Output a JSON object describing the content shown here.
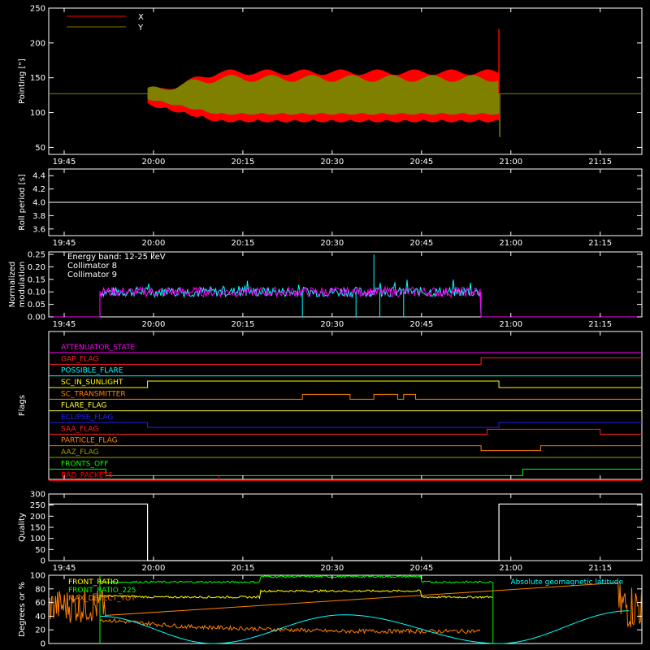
{
  "time_labels": [
    "19:45",
    "20:00",
    "20:15",
    "20:30",
    "20:45",
    "21:00",
    "21:15"
  ],
  "pointing": {
    "ylabel": "Pointing [\"]",
    "yticks": [
      50,
      100,
      150,
      200,
      250
    ],
    "legend": [
      {
        "name": "X",
        "color": "#ff0000"
      },
      {
        "name": "Y",
        "color": "#808000"
      }
    ]
  },
  "roll": {
    "ylabel": "Roll period [s]",
    "yticks": [
      "3.6",
      "3.8",
      "4.0",
      "4.2",
      "4.4"
    ],
    "value": 4.0
  },
  "modulation": {
    "ylabel": "Normalized modulation",
    "yticks": [
      "0.00",
      "0.05",
      "0.10",
      "0.15",
      "0.20",
      "0.25"
    ],
    "legend": [
      {
        "name": "Energy band: 12-25 keV",
        "color": "#ffffff"
      },
      {
        "name": "Collimator 8",
        "color": "#00ffff"
      },
      {
        "name": "Collimator 9",
        "color": "#ff00ff"
      }
    ]
  },
  "flags": {
    "ylabel": "Flags",
    "items": [
      {
        "name": "ATTENUATOR_STATE",
        "color": "#ff00ff"
      },
      {
        "name": "GAP_FLAG",
        "color": "#ff2020"
      },
      {
        "name": "POSSIBLE_FLARE",
        "color": "#00ffff"
      },
      {
        "name": "SC_IN_SUNLIGHT",
        "color": "#ffff00"
      },
      {
        "name": "SC_TRANSMITTER",
        "color": "#ff8000"
      },
      {
        "name": "FLARE_FLAG",
        "color": "#ffff40"
      },
      {
        "name": "ECLIPSE_FLAG",
        "color": "#2020ff"
      },
      {
        "name": "SAA_FLAG",
        "color": "#ff2020"
      },
      {
        "name": "PARTICLE_FLAG",
        "color": "#ff8000"
      },
      {
        "name": "AAZ_FLAG",
        "color": "#a0a000"
      },
      {
        "name": "FRONTS_OFF",
        "color": "#00ff00"
      },
      {
        "name": "BAD_PACKETS",
        "color": "#ff0000"
      }
    ]
  },
  "quality": {
    "ylabel": "Quality",
    "yticks": [
      0,
      50,
      100,
      150,
      200,
      250,
      300
    ]
  },
  "ratio": {
    "ylabel": "Degrees or %",
    "yticks": [
      0,
      20,
      40,
      60,
      80,
      100
    ],
    "legend": [
      {
        "name": "FRONT_RATIO",
        "color": "#ffff00"
      },
      {
        "name": "FRONT_RATIO_225",
        "color": "#00ff00"
      },
      {
        "name": "MAX_DETECT_TOT",
        "color": "#ff8000"
      }
    ],
    "geo_label": "Absolute geomagnetic latitude",
    "geo_color": "#00ffff"
  },
  "chart_data": [
    {
      "type": "line",
      "title": "",
      "ylabel": "Pointing [\"]",
      "ylim": [
        40,
        250
      ],
      "xlim": [
        "19:38",
        "21:22"
      ],
      "series": [
        {
          "name": "X",
          "baseline": 127,
          "active": [
            "19:59",
            "20:58"
          ],
          "band_lo": [
            85,
            115
          ],
          "band_hi": [
            155,
            160
          ]
        },
        {
          "name": "Y",
          "baseline": 127,
          "active": [
            "19:59",
            "20:58"
          ],
          "band_lo": [
            95,
            100
          ],
          "band_hi": [
            145,
            155
          ]
        }
      ]
    },
    {
      "type": "line",
      "ylabel": "Roll period [s]",
      "ylim": [
        3.5,
        4.5
      ],
      "series": [
        {
          "name": "",
          "x": [
            "19:38",
            "21:22"
          ],
          "y": [
            4.0,
            4.0
          ]
        }
      ]
    },
    {
      "type": "line",
      "ylabel": "Normalized modulation",
      "ylim": [
        0,
        0.26
      ],
      "series": [
        {
          "name": "Collimator 8",
          "active": [
            "19:51",
            "20:55"
          ],
          "mean": 0.1
        },
        {
          "name": "Collimator 9",
          "active": [
            "19:51",
            "20:55"
          ],
          "mean": 0.1
        }
      ]
    },
    {
      "type": "line",
      "ylabel": "Quality",
      "ylim": [
        0,
        300
      ],
      "series": [
        {
          "name": "",
          "x": [
            "19:38",
            "19:59",
            "19:59",
            "20:58",
            "20:58",
            "21:22"
          ],
          "y": [
            255,
            255,
            0,
            0,
            255,
            255
          ]
        }
      ]
    },
    {
      "type": "line",
      "ylabel": "Degrees or %",
      "ylim": [
        0,
        100
      ],
      "series": [
        {
          "name": "FRONT_RATIO",
          "x": [
            "19:51",
            "20:00",
            "20:18",
            "20:18",
            "20:45",
            "20:45",
            "20:57"
          ],
          "y": [
            70,
            68,
            68,
            77,
            77,
            68,
            68
          ]
        },
        {
          "name": "FRONT_RATIO_225",
          "x": [
            "19:51",
            "20:18",
            "20:18",
            "20:45",
            "20:45",
            "20:57"
          ],
          "y": [
            90,
            90,
            98,
            98,
            90,
            90
          ]
        },
        {
          "name": "MAX_DETECT_TOT",
          "x": [
            "19:51",
            "20:05",
            "20:30",
            "20:55"
          ],
          "y": [
            35,
            25,
            18,
            18
          ]
        },
        {
          "name": "Absolute geomagnetic latitude",
          "x": [
            "19:51",
            "20:10",
            "20:32",
            "20:58",
            "21:20"
          ],
          "y": [
            40,
            0,
            42,
            0,
            48
          ]
        }
      ]
    }
  ]
}
